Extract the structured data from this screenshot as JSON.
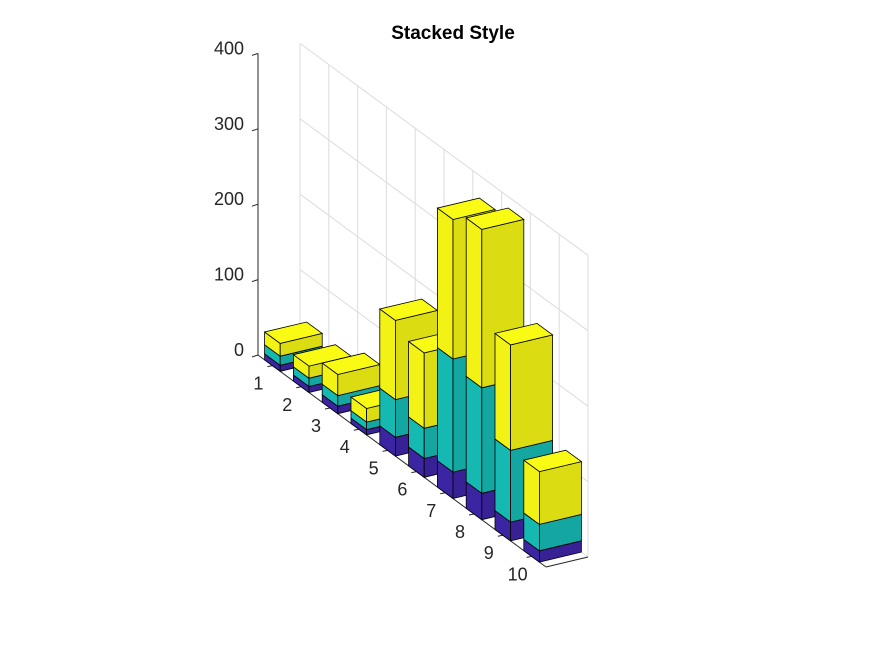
{
  "chart_data": {
    "type": "bar",
    "subtype": "3d-stacked",
    "title": "Stacked Style",
    "xlabel": "",
    "ylabel": "",
    "categories": [
      "1",
      "2",
      "3",
      "4",
      "5",
      "6",
      "7",
      "8",
      "9",
      "10"
    ],
    "ylim": [
      0,
      400
    ],
    "yticks": [
      0,
      100,
      200,
      300,
      400
    ],
    "grid": true,
    "series": [
      {
        "values": [
          8,
          8,
          10,
          7,
          25,
          25,
          35,
          35,
          25,
          15
        ],
        "color": "#3E26A8"
      },
      {
        "values": [
          12,
          11,
          14,
          10,
          50,
          40,
          150,
          140,
          95,
          35
        ],
        "color": "#17BEB8"
      },
      {
        "values": [
          17,
          16,
          28,
          18,
          105,
          100,
          185,
          210,
          140,
          70
        ],
        "color": "#F9FB15"
      }
    ]
  }
}
